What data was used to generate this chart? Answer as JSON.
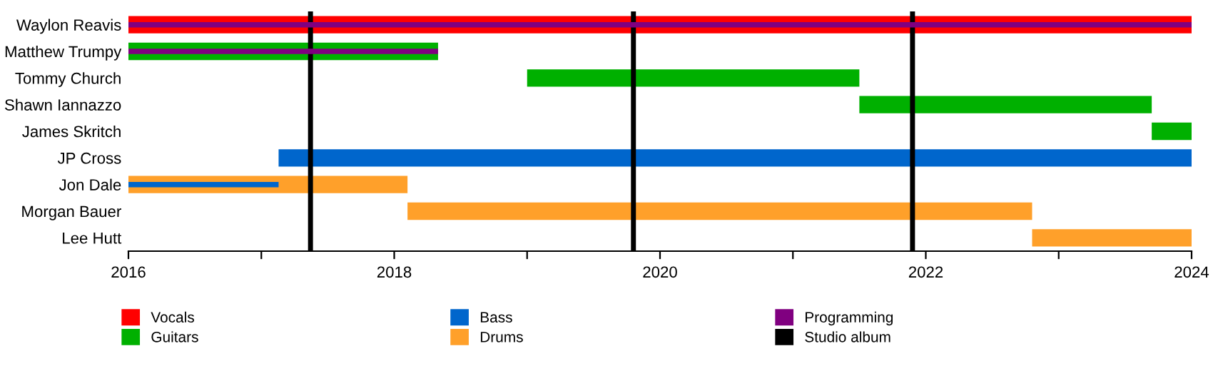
{
  "chart_data": {
    "type": "bar",
    "orientation": "horizontal",
    "categories": [
      "Waylon Reavis",
      "Matthew Trumpy",
      "Tommy Church",
      "Shawn Iannazzo",
      "James Skritch",
      "JP Cross",
      "Jon Dale",
      "Morgan Bauer",
      "Lee Hutt"
    ],
    "series": [
      {
        "name": "Vocals",
        "color": "#ff0000",
        "values": [
          8,
          null,
          null,
          null,
          null,
          null,
          null,
          null,
          null
        ],
        "base": [
          2016,
          null,
          null,
          null,
          null,
          null,
          null,
          null,
          null
        ]
      },
      {
        "name": "Guitars",
        "color": "#00b000",
        "values": [
          null,
          2.33,
          2.5,
          2.2,
          0.3,
          null,
          null,
          null,
          null
        ],
        "base": [
          null,
          2016,
          2019.0,
          2021.5,
          2023.7,
          null,
          null,
          null,
          null
        ]
      },
      {
        "name": "Bass",
        "color": "#0066cc",
        "values": [
          null,
          null,
          null,
          null,
          null,
          6.87,
          1.13,
          null,
          null
        ],
        "base": [
          null,
          null,
          null,
          null,
          null,
          2017.13,
          2016,
          null,
          null
        ]
      },
      {
        "name": "Drums",
        "color": "#ffa02a",
        "values": [
          null,
          null,
          null,
          null,
          null,
          null,
          2.1,
          4.7,
          1.2
        ],
        "base": [
          null,
          null,
          null,
          null,
          null,
          null,
          2016,
          2018.1,
          2022.8
        ]
      },
      {
        "name": "Programming",
        "color": "#800080",
        "values": [
          8,
          2.33,
          null,
          null,
          null,
          null,
          null,
          null,
          null
        ],
        "base": [
          2016,
          2016,
          null,
          null,
          null,
          null,
          null,
          null,
          null
        ]
      }
    ],
    "ref_lines": [
      {
        "axis": "x",
        "value": 2017.37,
        "label": "Studio album",
        "color": "#000000"
      },
      {
        "axis": "x",
        "value": 2019.8,
        "color": "#000000"
      },
      {
        "axis": "x",
        "value": 2021.9,
        "color": "#000000"
      }
    ],
    "xlim": [
      2016,
      2024
    ],
    "xticks": [
      2016,
      {
        "value": 2017,
        "label": null
      },
      2018,
      {
        "value": 2019,
        "label": null
      },
      2020,
      {
        "value": 2021,
        "label": null
      },
      2022,
      {
        "value": 2023,
        "label": null
      },
      2024
    ],
    "grid": false,
    "legend": "bottom"
  }
}
